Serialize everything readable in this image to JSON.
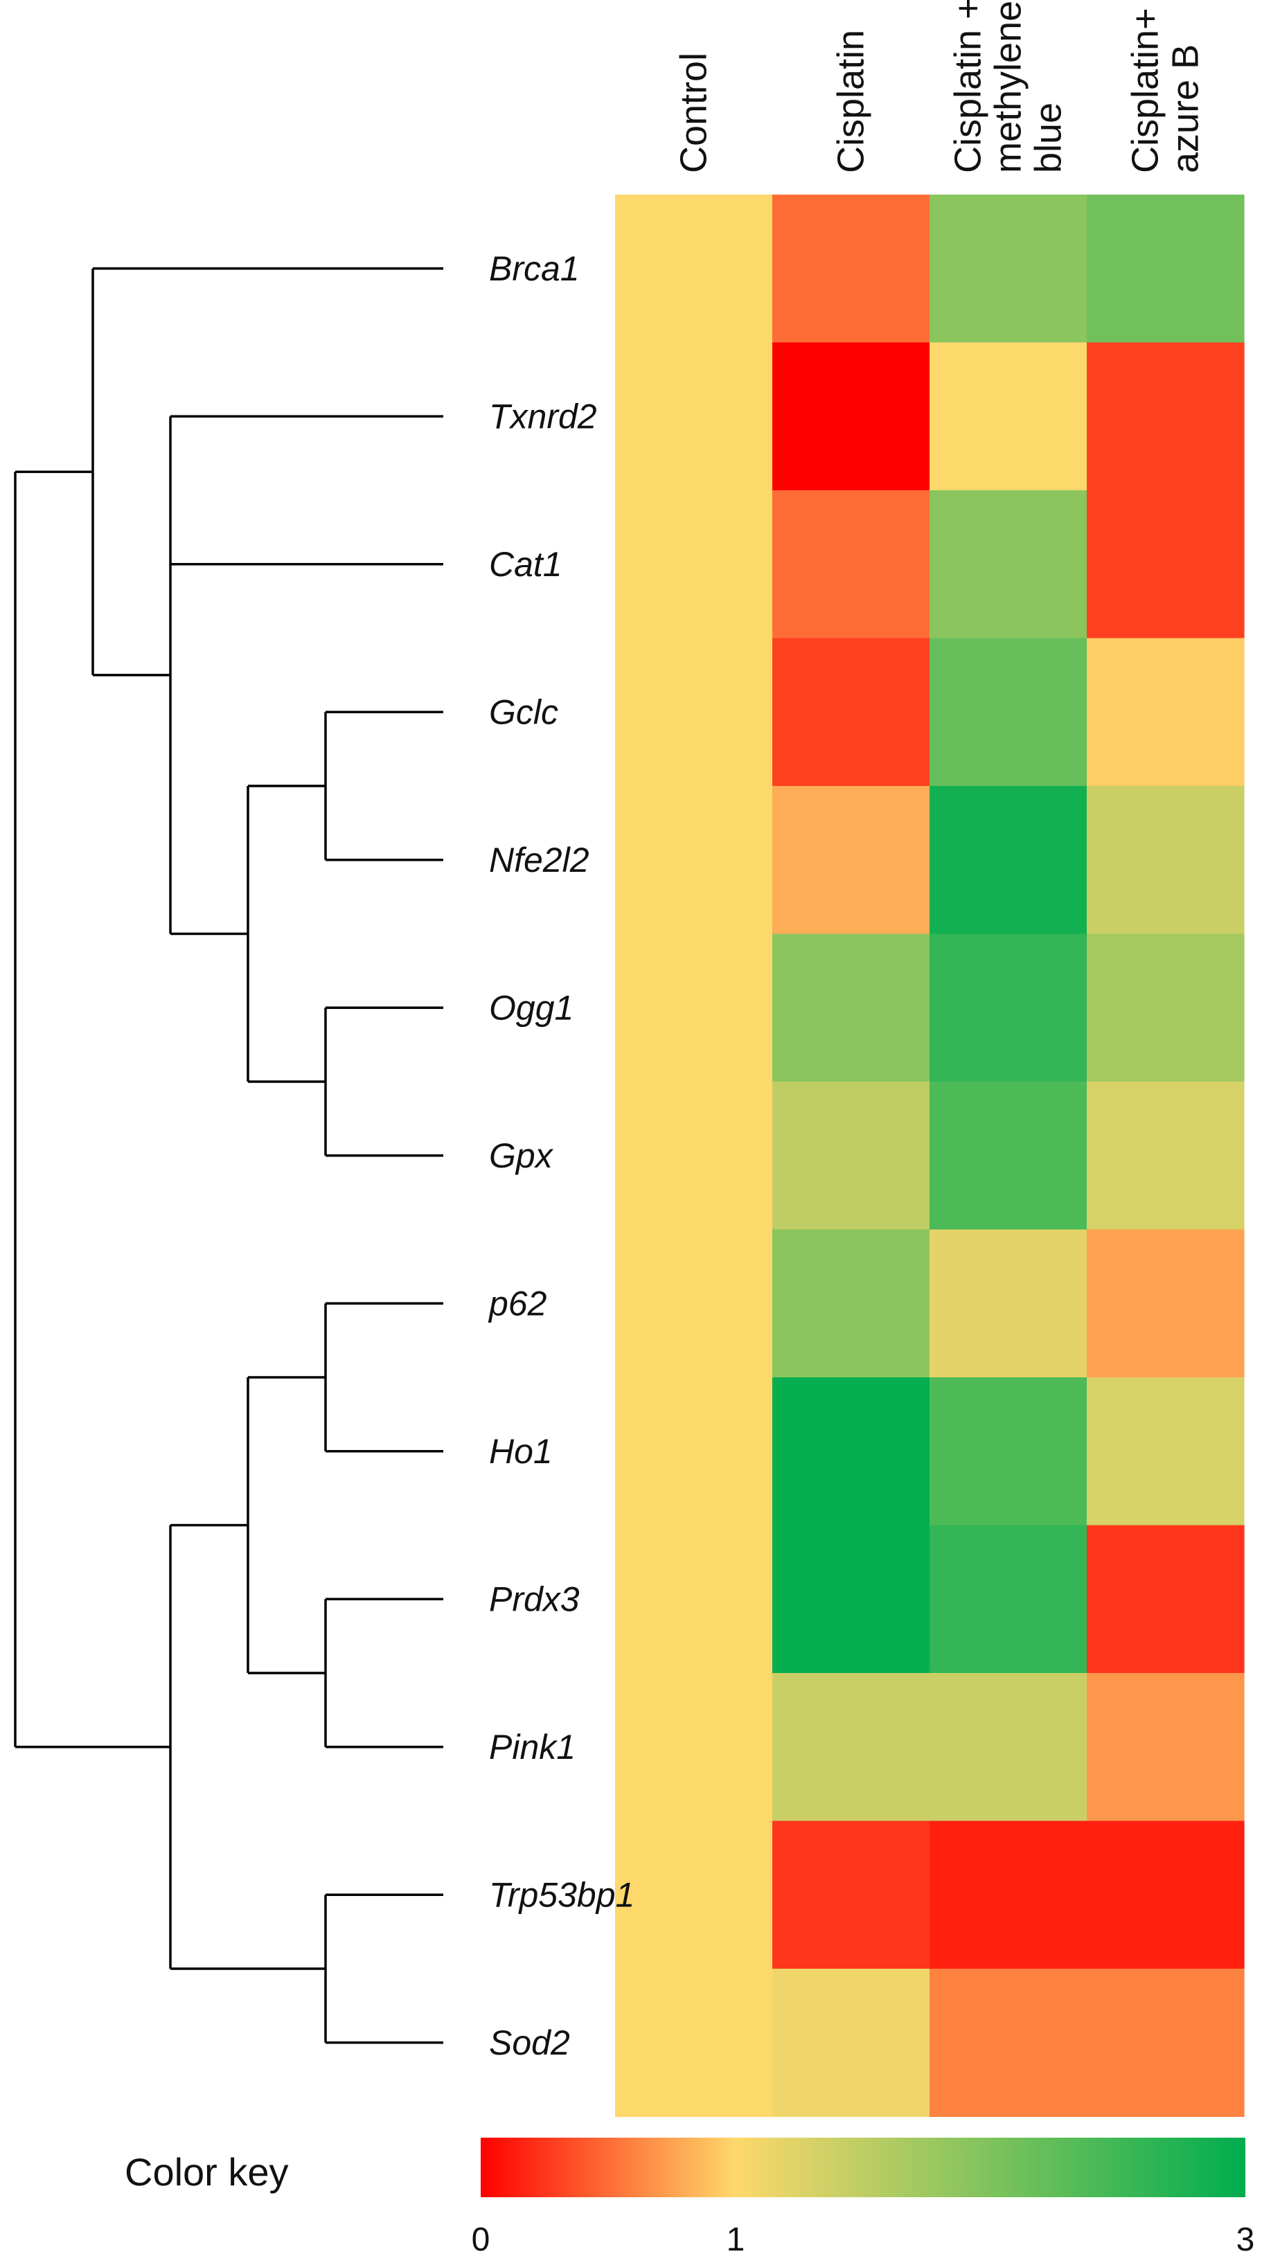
{
  "chart_data": {
    "type": "heatmap",
    "title": "",
    "columns": [
      "Control",
      "Cisplatin",
      "Cisplatin + methylene blue",
      "Cisplatin+ azure B"
    ],
    "column_label_lines": [
      [
        "Control"
      ],
      [
        "Cisplatin"
      ],
      [
        "Cisplatin +",
        "methylene",
        "blue"
      ],
      [
        "Cisplatin+",
        "azure B"
      ]
    ],
    "rows": [
      "Brca1",
      "Txnrd2",
      "Cat1",
      "Gclc",
      "Nfe2l2",
      "Ogg1",
      "Gpx",
      "p62",
      "Ho1",
      "Prdx3",
      "Pink1",
      "Trp53bp1",
      "Sod2"
    ],
    "values": [
      [
        1,
        0.5,
        1.9,
        2.1
      ],
      [
        1,
        0.0,
        1.0,
        0.3
      ],
      [
        1,
        0.5,
        1.9,
        0.3
      ],
      [
        1,
        0.3,
        2.2,
        0.95
      ],
      [
        1,
        0.8,
        2.85,
        1.4
      ],
      [
        1,
        1.9,
        2.6,
        1.7
      ],
      [
        1,
        1.5,
        2.4,
        1.3
      ],
      [
        1,
        1.9,
        1.2,
        0.75
      ],
      [
        1,
        2.95,
        2.4,
        1.3
      ],
      [
        1,
        2.95,
        2.6,
        0.25
      ],
      [
        1,
        1.4,
        1.4,
        0.7
      ],
      [
        1,
        0.25,
        0.15,
        0.15
      ],
      [
        1,
        1.1,
        0.6,
        0.6
      ]
    ],
    "color_key": {
      "title": "Color key",
      "min": 0,
      "max": 3,
      "ticks": [
        0,
        1,
        3
      ],
      "tick_labels": [
        "0",
        "1",
        "3"
      ],
      "stops": [
        {
          "value": 0,
          "color": "#ff0000"
        },
        {
          "value": 1,
          "color": "#fdd86b"
        },
        {
          "value": 3,
          "color": "#00ad4f"
        }
      ]
    },
    "dendrogram": {
      "leaf_order": [
        "Brca1",
        "Txnrd2",
        "Cat1",
        "Gclc",
        "Nfe2l2",
        "Ogg1",
        "Gpx",
        "p62",
        "Ho1",
        "Prdx3",
        "Pink1",
        "Trp53bp1",
        "Sod2"
      ],
      "tree": {
        "children": [
          {
            "children": [
              {
                "leaf": 0
              },
              {
                "children": [
                  {
                    "leaf": 1
                  },
                  {
                    "leaf": 2
                  },
                  {
                    "children": [
                      {
                        "children": [
                          {
                            "leaf": 3
                          },
                          {
                            "leaf": 4
                          }
                        ]
                      },
                      {
                        "children": [
                          {
                            "leaf": 5
                          },
                          {
                            "leaf": 6
                          }
                        ]
                      }
                    ]
                  }
                ]
              }
            ]
          },
          {
            "children": [
              {
                "children": [
                  {
                    "children": [
                      {
                        "leaf": 7
                      },
                      {
                        "leaf": 8
                      }
                    ]
                  },
                  {
                    "children": [
                      {
                        "leaf": 9
                      },
                      {
                        "leaf": 10
                      }
                    ]
                  }
                ]
              },
              {
                "children": [
                  {
                    "leaf": 11
                  },
                  {
                    "leaf": 12
                  }
                ]
              }
            ]
          }
        ]
      }
    }
  }
}
